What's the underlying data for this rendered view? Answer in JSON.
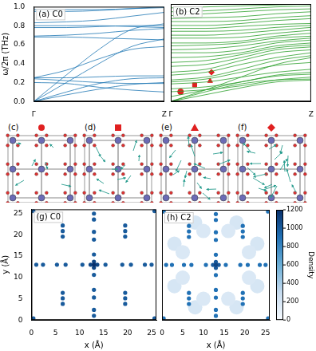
{
  "chart_data": [
    {
      "type": "line",
      "title": "(a) C0",
      "y_label": "ω/2π (THz)",
      "color": "#1f77b4",
      "x": [
        0,
        0.25,
        0.5,
        0.75,
        1
      ],
      "xlim": [
        0,
        1
      ],
      "xticks": [
        {
          "value": 0,
          "label": "Γ"
        },
        {
          "value": 1,
          "label": "Z"
        }
      ],
      "ylim": [
        0,
        1
      ],
      "yticks": [
        {
          "value": 0,
          "label": "0.0"
        },
        0.2,
        0.4,
        0.6,
        0.8,
        {
          "value": 1,
          "label": "1.0"
        }
      ],
      "grid": false,
      "series": [
        {
          "values": [
            0,
            0.07,
            0.13,
            0.18,
            0.2
          ]
        },
        {
          "values": [
            0,
            0.1,
            0.19,
            0.24,
            0.25
          ]
        },
        {
          "values": [
            0,
            0.2,
            0.4,
            0.58,
            0.66
          ]
        },
        {
          "values": [
            0,
            0.28,
            0.55,
            0.76,
            0.82
          ]
        },
        {
          "values": [
            0.25,
            0.25,
            0.26,
            0.27,
            0.27
          ]
        },
        {
          "values": [
            0.24,
            0.22,
            0.2,
            0.19,
            0.19
          ]
        },
        {
          "values": [
            0.2,
            0.19,
            0.15,
            0.12,
            0.1
          ]
        },
        {
          "values": [
            0.25,
            0.33,
            0.45,
            0.55,
            0.58
          ]
        },
        {
          "values": [
            0.68,
            0.68,
            0.67,
            0.66,
            0.65
          ]
        },
        {
          "values": [
            0.69,
            0.7,
            0.72,
            0.75,
            0.77
          ]
        },
        {
          "values": [
            0.78,
            0.78,
            0.79,
            0.8,
            0.8
          ]
        },
        {
          "values": [
            0.8,
            0.8,
            0.8,
            0.79,
            0.78
          ]
        },
        {
          "values": [
            0.83,
            0.84,
            0.86,
            0.9,
            0.94
          ]
        },
        {
          "values": [
            0.95,
            0.95,
            0.96,
            0.98,
            1.0
          ]
        },
        {
          "values": [
            0.97,
            0.97,
            0.97,
            0.98,
            0.99
          ]
        }
      ]
    },
    {
      "type": "line",
      "title": "(b) C2",
      "color": "#2ca02c",
      "tick_labels": "x",
      "x": [
        0,
        0.25,
        0.5,
        0.75,
        1
      ],
      "xlim": [
        0,
        1
      ],
      "xticks": [
        {
          "value": 0,
          "label": "Γ"
        },
        {
          "value": 1,
          "label": "Z"
        }
      ],
      "ylim": [
        0,
        1
      ],
      "yticks": [
        0,
        0.2,
        0.4,
        0.6,
        0.8,
        1
      ],
      "grid": false,
      "series": [
        {
          "values": [
            0,
            0.07,
            0.14,
            0.2,
            0.22
          ]
        },
        {
          "values": [
            0,
            0.1,
            0.18,
            0.22,
            0.23
          ]
        },
        {
          "values": [
            0,
            0.12,
            0.25,
            0.38,
            0.45
          ]
        },
        {
          "values": [
            0.05,
            0.12,
            0.2,
            0.26,
            0.28
          ]
        },
        {
          "values": [
            0.1,
            0.12,
            0.16,
            0.22,
            0.25
          ]
        },
        {
          "values": [
            0.13,
            0.15,
            0.2,
            0.27,
            0.3
          ]
        },
        {
          "values": [
            0.18,
            0.2,
            0.25,
            0.3,
            0.33
          ]
        },
        {
          "values": [
            0.2,
            0.23,
            0.3,
            0.37,
            0.4
          ]
        },
        {
          "values": [
            0.22,
            0.25,
            0.33,
            0.42,
            0.47
          ]
        },
        {
          "values": [
            0.27,
            0.3,
            0.38,
            0.45,
            0.5
          ]
        },
        {
          "values": [
            0.3,
            0.33,
            0.42,
            0.5,
            0.53
          ]
        },
        {
          "values": [
            0.36,
            0.38,
            0.45,
            0.53,
            0.56
          ]
        },
        {
          "values": [
            0.4,
            0.42,
            0.48,
            0.55,
            0.58
          ]
        },
        {
          "values": [
            0.45,
            0.46,
            0.5,
            0.57,
            0.6
          ]
        },
        {
          "values": [
            0.5,
            0.5,
            0.53,
            0.6,
            0.63
          ]
        },
        {
          "values": [
            0.53,
            0.54,
            0.57,
            0.62,
            0.65
          ]
        },
        {
          "values": [
            0.57,
            0.58,
            0.6,
            0.65,
            0.67
          ]
        },
        {
          "values": [
            0.6,
            0.6,
            0.62,
            0.67,
            0.7
          ]
        },
        {
          "values": [
            0.65,
            0.65,
            0.66,
            0.7,
            0.73
          ]
        },
        {
          "values": [
            0.68,
            0.68,
            0.7,
            0.73,
            0.76
          ]
        },
        {
          "values": [
            0.72,
            0.72,
            0.73,
            0.76,
            0.78
          ]
        },
        {
          "values": [
            0.75,
            0.75,
            0.77,
            0.79,
            0.8
          ]
        },
        {
          "values": [
            0.78,
            0.78,
            0.8,
            0.83,
            0.85
          ]
        },
        {
          "values": [
            0.82,
            0.82,
            0.83,
            0.86,
            0.88
          ]
        },
        {
          "values": [
            0.85,
            0.86,
            0.87,
            0.9,
            0.92
          ]
        },
        {
          "values": [
            0.88,
            0.9,
            0.92,
            0.94,
            0.95
          ]
        },
        {
          "values": [
            0.92,
            0.93,
            0.95,
            0.97,
            0.98
          ]
        },
        {
          "values": [
            0.96,
            0.97,
            0.98,
            0.99,
            1.0
          ]
        },
        {
          "type": "scatter",
          "marker": "circle",
          "color": "#e02020",
          "x": [
            0.07
          ],
          "values": [
            0.1
          ]
        },
        {
          "type": "scatter",
          "marker": "square",
          "color": "#e02020",
          "x": [
            0.17
          ],
          "values": [
            0.17
          ]
        },
        {
          "type": "scatter",
          "marker": "triangle",
          "color": "#e02020",
          "x": [
            0.28
          ],
          "values": [
            0.21
          ]
        },
        {
          "type": "scatter",
          "marker": "diamond",
          "color": "#e02020",
          "x": [
            0.29
          ],
          "values": [
            0.3
          ]
        }
      ]
    },
    {
      "type": "heatmap",
      "title": "(g) C0",
      "x_label": "x (Å)",
      "y_label": "y (Å)",
      "xlim": [
        0,
        26
      ],
      "xticks": [
        0,
        5,
        10,
        15,
        20,
        25
      ],
      "ylim": [
        0,
        26
      ],
      "yticks": [
        0,
        5,
        10,
        15,
        20,
        25
      ],
      "grid": false,
      "cells": [
        [
          1,
          13,
          1000
        ],
        [
          2.4,
          13,
          1000
        ],
        [
          5.3,
          13,
          1000
        ],
        [
          7.1,
          13,
          1000
        ],
        [
          10.6,
          13,
          1000
        ],
        [
          15.4,
          13,
          1000
        ],
        [
          18.9,
          13,
          1000
        ],
        [
          20.7,
          13,
          1000
        ],
        [
          23.6,
          13,
          1000
        ],
        [
          25,
          13,
          1000
        ],
        [
          13,
          1,
          1000
        ],
        [
          13,
          2.4,
          1000
        ],
        [
          13,
          5.3,
          1000
        ],
        [
          13,
          7.1,
          1000
        ],
        [
          13,
          10.6,
          1000
        ],
        [
          13,
          15.4,
          1000
        ],
        [
          13,
          18.9,
          1000
        ],
        [
          13,
          20.7,
          1000
        ],
        [
          13,
          23.6,
          1000
        ],
        [
          13,
          25,
          1000
        ],
        [
          6.5,
          19.6,
          1000
        ],
        [
          6.5,
          20.9,
          1000
        ],
        [
          6.5,
          22.2,
          1000
        ],
        [
          19.5,
          19.6,
          1000
        ],
        [
          19.5,
          20.9,
          1000
        ],
        [
          19.5,
          22.2,
          1000
        ],
        [
          6.5,
          3.8,
          1000
        ],
        [
          6.5,
          5.1,
          1000
        ],
        [
          6.5,
          6.4,
          1000
        ],
        [
          19.5,
          3.8,
          1000
        ],
        [
          19.5,
          5.1,
          1000
        ],
        [
          19.5,
          6.4,
          1000
        ],
        [
          0.4,
          0.4,
          1000
        ],
        [
          25.6,
          0.4,
          1000
        ],
        [
          0.4,
          25.6,
          1000
        ],
        [
          25.6,
          25.6,
          1000
        ],
        [
          12.3,
          13,
          1100
        ],
        [
          13.7,
          13,
          1100
        ],
        [
          13,
          12.3,
          1100
        ],
        [
          13,
          13.7,
          1100
        ],
        [
          13,
          13,
          1200
        ]
      ]
    },
    {
      "type": "heatmap",
      "title": "(h) C2",
      "x_label": "x (Å)",
      "tick_labels": "x",
      "xlim": [
        0,
        26
      ],
      "xticks": [
        0,
        5,
        10,
        15,
        20,
        25
      ],
      "ylim": [
        0,
        26
      ],
      "yticks": [
        0,
        5,
        10,
        15,
        20,
        25
      ],
      "grid": false,
      "cells": [
        [
          3,
          8,
          200
        ],
        [
          8,
          3,
          200
        ],
        [
          18,
          3,
          200
        ],
        [
          23,
          8,
          200
        ],
        [
          3,
          18,
          200
        ],
        [
          8,
          23,
          200
        ],
        [
          18,
          23,
          200
        ],
        [
          23,
          18,
          200
        ],
        [
          10,
          5,
          180
        ],
        [
          16,
          5,
          180
        ],
        [
          5,
          10,
          180
        ],
        [
          21,
          10,
          180
        ],
        [
          5,
          16,
          180
        ],
        [
          21,
          16,
          180
        ],
        [
          10,
          21,
          180
        ],
        [
          16,
          21,
          180
        ],
        [
          1,
          13,
          900
        ],
        [
          2.4,
          13,
          900
        ],
        [
          5.3,
          13,
          900
        ],
        [
          7.1,
          13,
          900
        ],
        [
          10.6,
          13,
          900
        ],
        [
          15.4,
          13,
          900
        ],
        [
          18.9,
          13,
          900
        ],
        [
          20.7,
          13,
          900
        ],
        [
          23.6,
          13,
          900
        ],
        [
          25,
          13,
          900
        ],
        [
          13,
          1,
          900
        ],
        [
          13,
          2.4,
          900
        ],
        [
          13,
          5.3,
          900
        ],
        [
          13,
          7.1,
          900
        ],
        [
          13,
          10.6,
          900
        ],
        [
          13,
          15.4,
          900
        ],
        [
          13,
          18.9,
          900
        ],
        [
          13,
          20.7,
          900
        ],
        [
          13,
          23.6,
          900
        ],
        [
          13,
          25,
          900
        ],
        [
          6.5,
          19.6,
          900
        ],
        [
          6.5,
          20.9,
          900
        ],
        [
          6.5,
          22.2,
          900
        ],
        [
          19.5,
          19.6,
          900
        ],
        [
          19.5,
          20.9,
          900
        ],
        [
          19.5,
          22.2,
          900
        ],
        [
          6.5,
          3.8,
          900
        ],
        [
          6.5,
          5.1,
          900
        ],
        [
          6.5,
          6.4,
          900
        ],
        [
          19.5,
          3.8,
          900
        ],
        [
          19.5,
          5.1,
          900
        ],
        [
          19.5,
          6.4,
          900
        ],
        [
          0.4,
          0.4,
          900
        ],
        [
          25.6,
          0.4,
          900
        ],
        [
          0.4,
          25.6,
          900
        ],
        [
          25.6,
          25.6,
          900
        ],
        [
          12.3,
          13,
          1000
        ],
        [
          13.7,
          13,
          1000
        ],
        [
          13,
          12.3,
          1000
        ],
        [
          13,
          13.7,
          1000
        ],
        [
          13,
          13,
          1100
        ]
      ],
      "colorbar": {
        "label": "Density",
        "range": [
          0,
          1200
        ],
        "ticks": [
          0,
          200,
          400,
          600,
          800,
          1000,
          1200
        ]
      }
    }
  ],
  "mode_panels": [
    {
      "label": "(c)",
      "marker": "circle"
    },
    {
      "label": "(d)",
      "marker": "square"
    },
    {
      "label": "(e)",
      "marker": "triangle"
    },
    {
      "label": "(f)",
      "marker": "diamond"
    }
  ]
}
